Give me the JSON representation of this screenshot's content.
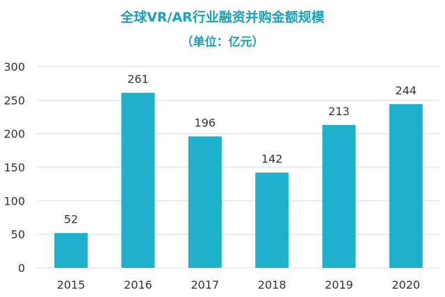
{
  "chart_data": {
    "type": "bar",
    "title": "全球VR/AR行业融资并购金额规模",
    "subtitle": "（单位：亿元）",
    "categories": [
      "2015",
      "2016",
      "2017",
      "2018",
      "2019",
      "2020"
    ],
    "values": [
      52,
      261,
      196,
      142,
      213,
      244
    ],
    "data_labels": [
      "52",
      "261",
      "196",
      "142",
      "213",
      "244"
    ],
    "ylim": [
      0,
      300
    ],
    "yticks": [
      "0",
      "50",
      "100",
      "150",
      "200",
      "250",
      "300"
    ],
    "ytick_values": [
      0,
      50,
      100,
      150,
      200,
      250,
      300
    ],
    "xlabel": "",
    "ylabel": "",
    "grid": true,
    "bar_color": "#1fb0cc",
    "grid_color": "#d9d9d9"
  }
}
